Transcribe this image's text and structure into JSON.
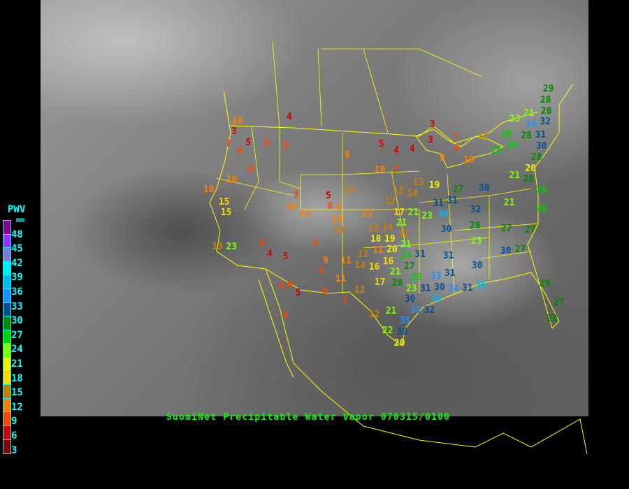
{
  "title": "SuomiNet Precipitable Water Vapor 070315/0100",
  "legend": {
    "title": "PWV",
    "unit": "mm",
    "ticks": [
      "48",
      "45",
      "42",
      "39",
      "36",
      "33",
      "30",
      "27",
      "24",
      "21",
      "18",
      "15",
      "12",
      "9",
      "6",
      "3"
    ],
    "colors_top_to_bottom": [
      "#8b008b",
      "#9b30ff",
      "#8878d8",
      "#00f0f0",
      "#00b8f0",
      "#1e90ff",
      "#005090",
      "#008800",
      "#00d000",
      "#80ff00",
      "#f0f000",
      "#ffd700",
      "#c88000",
      "#ff8000",
      "#ff4500",
      "#d40000",
      "#8b0000"
    ]
  },
  "colors": {
    "borders": "#ffff00",
    "title": "#00ff00",
    "legend_text": "#00ffff"
  },
  "stations": [
    4,
    10,
    3,
    7,
    5,
    6,
    8,
    6,
    6,
    10,
    10,
    15,
    15,
    9,
    5,
    4,
    4,
    3,
    3,
    7,
    6,
    9,
    10,
    7,
    13,
    7,
    10,
    5,
    8,
    9,
    10,
    11,
    11,
    12,
    14,
    12,
    14,
    13,
    19,
    17,
    21,
    23,
    13,
    14,
    12,
    21,
    13,
    23,
    8,
    4,
    5,
    6,
    9,
    8,
    11,
    6,
    6,
    5,
    8,
    12,
    7,
    8,
    11,
    14,
    12,
    16,
    17,
    12,
    21,
    22,
    20,
    30,
    35,
    33,
    32,
    30,
    28,
    25,
    23,
    31,
    30,
    36,
    34,
    31,
    36,
    33,
    31,
    31,
    27,
    24,
    31,
    30,
    36,
    31,
    31,
    27,
    30,
    32,
    28,
    23,
    30,
    27,
    21,
    30,
    27,
    27,
    26,
    26,
    29,
    27,
    29,
    29,
    28,
    28,
    32,
    31,
    23,
    21,
    34,
    28,
    26,
    26,
    25,
    30,
    28,
    20,
    21,
    28,
    14,
    10,
    21,
    18,
    19,
    16,
    20,
    21,
    11
  ]
}
